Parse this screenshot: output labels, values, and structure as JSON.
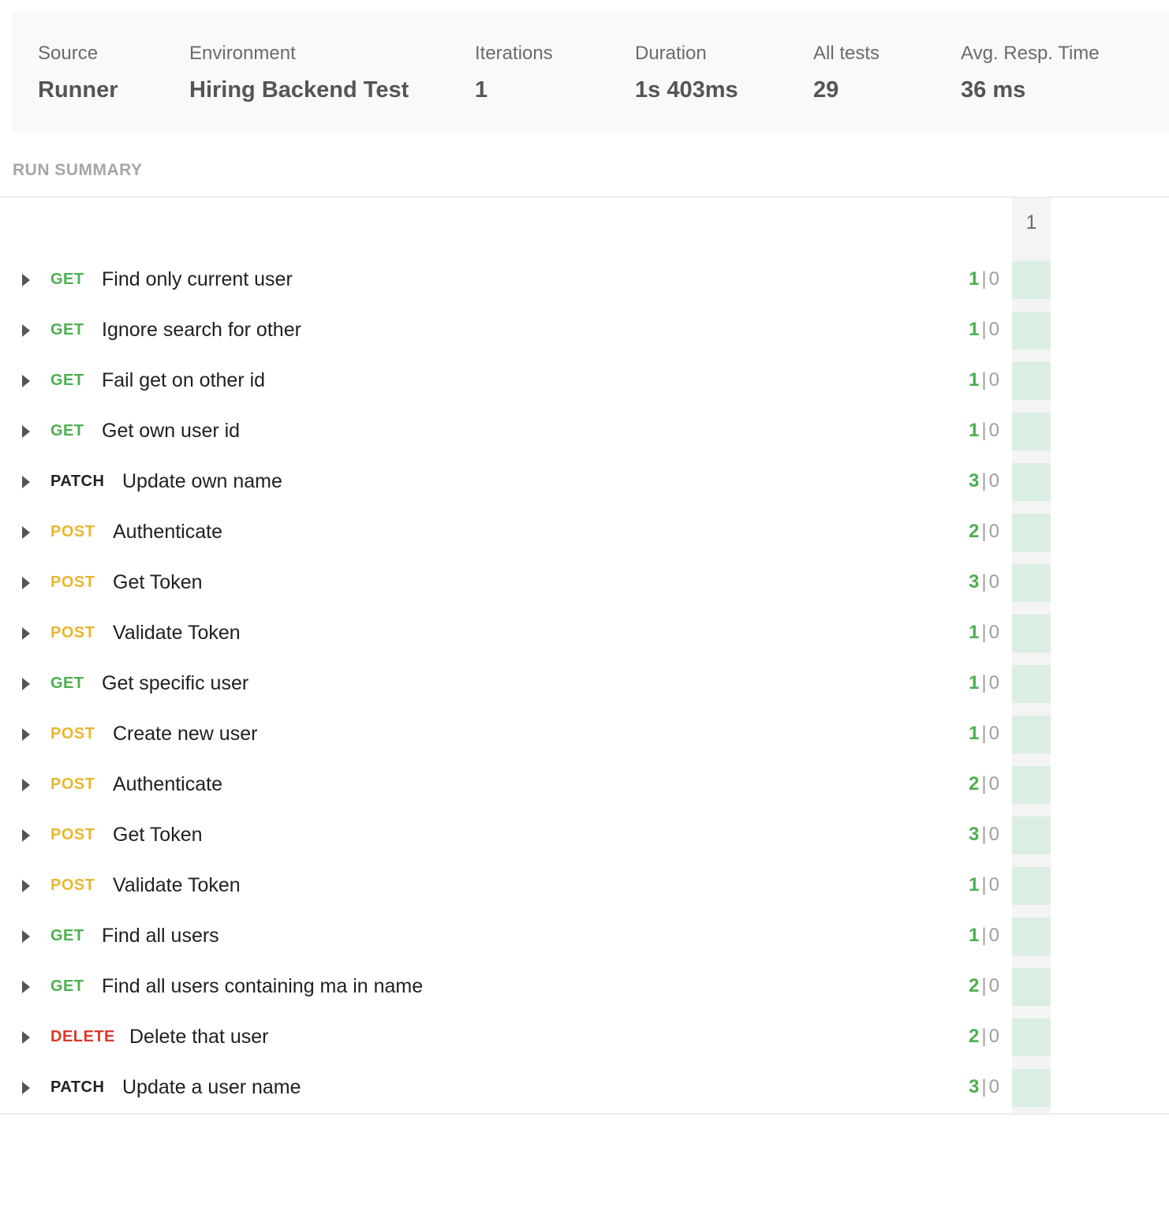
{
  "summary": {
    "stats": [
      {
        "label": "Source",
        "value": "Runner"
      },
      {
        "label": "Environment",
        "value": "Hiring Backend Test"
      },
      {
        "label": "Iterations",
        "value": "1"
      },
      {
        "label": "Duration",
        "value": "1s 403ms"
      },
      {
        "label": "All tests",
        "value": "29"
      },
      {
        "label": "Avg. Resp. Time",
        "value": "36 ms"
      }
    ]
  },
  "run_summary": {
    "title": "RUN SUMMARY",
    "iteration_header": "1",
    "colors": {
      "GET": "#4caf50",
      "POST": "#e8b730",
      "PATCH": "#212121",
      "DELETE": "#d9392b",
      "pass_cell": "#daeee2"
    },
    "requests": [
      {
        "method": "GET",
        "name": "Find only current user",
        "passed": "1",
        "failed": "0"
      },
      {
        "method": "GET",
        "name": "Ignore search for other",
        "passed": "1",
        "failed": "0"
      },
      {
        "method": "GET",
        "name": "Fail get on other id",
        "passed": "1",
        "failed": "0"
      },
      {
        "method": "GET",
        "name": "Get own user id",
        "passed": "1",
        "failed": "0"
      },
      {
        "method": "PATCH",
        "name": "Update own name",
        "passed": "3",
        "failed": "0"
      },
      {
        "method": "POST",
        "name": "Authenticate",
        "passed": "2",
        "failed": "0"
      },
      {
        "method": "POST",
        "name": "Get Token",
        "passed": "3",
        "failed": "0"
      },
      {
        "method": "POST",
        "name": "Validate Token",
        "passed": "1",
        "failed": "0"
      },
      {
        "method": "GET",
        "name": "Get specific user",
        "passed": "1",
        "failed": "0"
      },
      {
        "method": "POST",
        "name": "Create new user",
        "passed": "1",
        "failed": "0"
      },
      {
        "method": "POST",
        "name": "Authenticate",
        "passed": "2",
        "failed": "0"
      },
      {
        "method": "POST",
        "name": "Get Token",
        "passed": "3",
        "failed": "0"
      },
      {
        "method": "POST",
        "name": "Validate Token",
        "passed": "1",
        "failed": "0"
      },
      {
        "method": "GET",
        "name": "Find all users",
        "passed": "1",
        "failed": "0"
      },
      {
        "method": "GET",
        "name": "Find all users containing ma in name",
        "passed": "2",
        "failed": "0"
      },
      {
        "method": "DELETE",
        "name": "Delete that user",
        "passed": "2",
        "failed": "0"
      },
      {
        "method": "PATCH",
        "name": "Update a user name",
        "passed": "3",
        "failed": "0"
      }
    ]
  }
}
